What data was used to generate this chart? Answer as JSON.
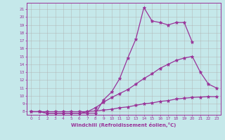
{
  "xlabel": "Windchill (Refroidissement éolien,°C)",
  "background_color": "#c5e8ea",
  "grid_color": "#b0b0b0",
  "line_color": "#993399",
  "line1_x": [
    0,
    1,
    2,
    3,
    4,
    5,
    6,
    7,
    8,
    9,
    10,
    11,
    12,
    13,
    14,
    15,
    16,
    17,
    18,
    19,
    20
  ],
  "line1_y": [
    8.0,
    8.0,
    7.8,
    7.8,
    7.8,
    7.8,
    7.8,
    7.8,
    7.8,
    9.5,
    10.5,
    12.2,
    14.8,
    17.2,
    21.2,
    19.5,
    19.3,
    19.0,
    19.3,
    19.3,
    16.8
  ],
  "line2_x": [
    0,
    1,
    2,
    3,
    4,
    5,
    6,
    7,
    8,
    9,
    10,
    11,
    12,
    13,
    14,
    15,
    16,
    17,
    18,
    19,
    20,
    21,
    22,
    23
  ],
  "line2_y": [
    8.0,
    8.0,
    7.8,
    7.8,
    7.8,
    7.8,
    7.8,
    8.0,
    8.5,
    9.2,
    9.8,
    10.3,
    10.8,
    11.5,
    12.2,
    12.8,
    13.5,
    14.0,
    14.5,
    14.8,
    15.0,
    13.0,
    11.5,
    11.0
  ],
  "line3_x": [
    0,
    1,
    2,
    3,
    4,
    5,
    6,
    7,
    8,
    9,
    10,
    11,
    12,
    13,
    14,
    15,
    16,
    17,
    18,
    19,
    20,
    21,
    22,
    23
  ],
  "line3_y": [
    8.0,
    8.0,
    8.0,
    8.0,
    8.0,
    8.0,
    8.0,
    8.0,
    8.1,
    8.2,
    8.3,
    8.5,
    8.6,
    8.8,
    9.0,
    9.1,
    9.3,
    9.4,
    9.6,
    9.7,
    9.8,
    9.85,
    9.9,
    9.9
  ],
  "ylim": [
    7.6,
    21.8
  ],
  "xlim": [
    -0.5,
    23.5
  ],
  "yticks": [
    8,
    9,
    10,
    11,
    12,
    13,
    14,
    15,
    16,
    17,
    18,
    19,
    20,
    21
  ],
  "xticks": [
    0,
    1,
    2,
    3,
    4,
    5,
    6,
    7,
    8,
    9,
    10,
    11,
    12,
    13,
    14,
    15,
    16,
    17,
    18,
    19,
    20,
    21,
    22,
    23
  ]
}
